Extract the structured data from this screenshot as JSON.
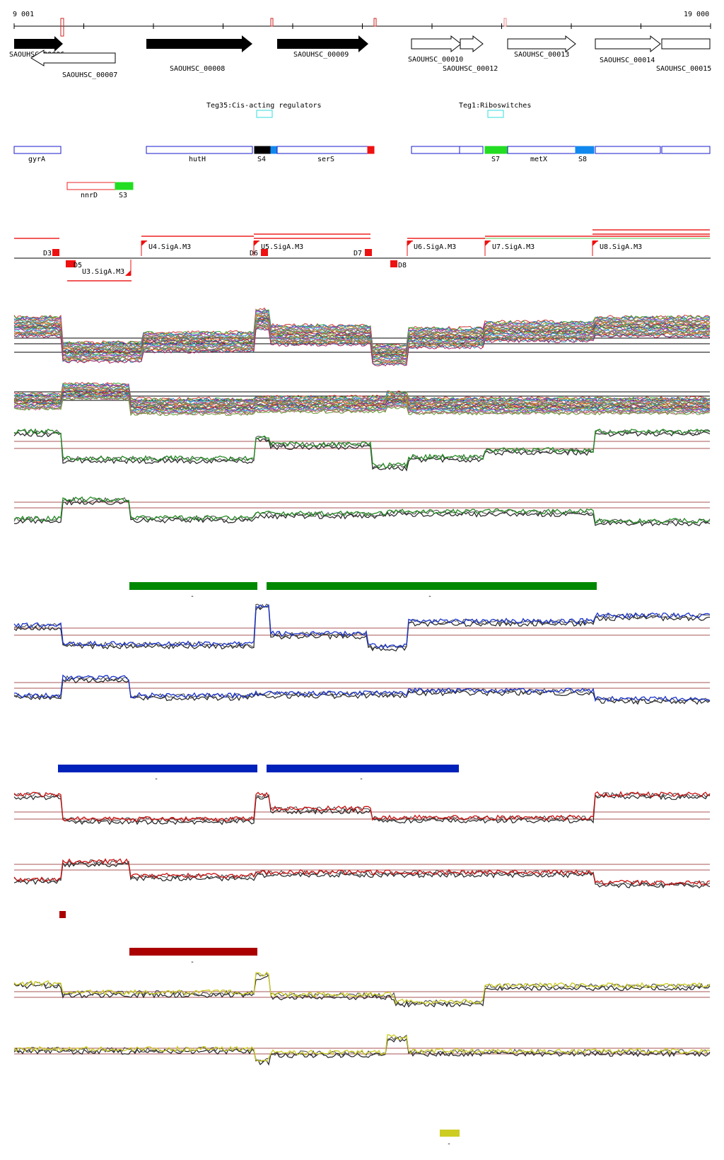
{
  "ruler": {
    "start_label": "9 001",
    "end_label": "19 000"
  },
  "genes_forward": [
    "SAOUHSC_00006",
    "SAOUHSC_00008",
    "SAOUHSC_00009"
  ],
  "genes_reverse": [
    "SAOUHSC_00007"
  ],
  "genes_open": [
    "SAOUHSC_00010",
    "SAOUHSC_00012",
    "SAOUHSC_00013",
    "SAOUHSC_00014",
    "SAOUHSC_00015"
  ],
  "regulators": [
    "Teg35:Cis-acting regulators",
    "Teg1:Riboswitches"
  ],
  "segments": [
    "gyrA",
    "hutH",
    "S4",
    "serS",
    "S7",
    "metX",
    "S8",
    "nnrD",
    "S3"
  ],
  "promoters": [
    "U4.SigA.M3",
    "U5.SigA.M3",
    "U3.SigA.M3",
    "U6.SigA.M3",
    "U7.SigA.M3",
    "U8.SigA.M3"
  ],
  "terminators": [
    "D3",
    "D5",
    "D6",
    "D7",
    "D8"
  ],
  "bar_mark": "-",
  "colors": {
    "forward_gene": "#000000",
    "segment_outline": "#1a1acc",
    "regulator_box": "#33dddd",
    "sigA": "#ee0000",
    "green_track": "#228b22",
    "blue_track": "#1a33cc",
    "red_track": "#cc1111",
    "yellow_track": "#cccc22",
    "green_bar": "#008800",
    "blue_bar": "#0022bb",
    "red_bar": "#aa0000",
    "yellow_bar": "#cccc22"
  }
}
